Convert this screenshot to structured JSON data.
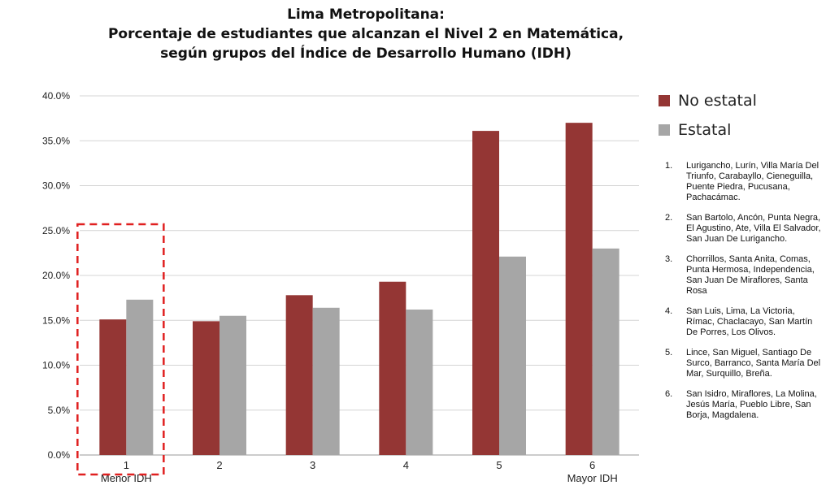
{
  "chart_data": {
    "type": "bar",
    "title_lines": [
      "Lima Metropolitana:",
      "Porcentaje de estudiantes que alcanzan el Nivel 2 en Matemática,",
      "según grupos del Índice de Desarrollo Humano  (IDH)"
    ],
    "categories": [
      "1",
      "2",
      "3",
      "4",
      "5",
      "6"
    ],
    "category_sublabels": [
      "Menor IDH",
      "",
      "",
      "",
      "",
      "Mayor IDH"
    ],
    "series": [
      {
        "name": "No estatal",
        "color": "#943634",
        "values": [
          15.1,
          14.9,
          17.8,
          19.3,
          36.1,
          37.0
        ]
      },
      {
        "name": "Estatal",
        "color": "#a6a6a6",
        "values": [
          17.3,
          15.5,
          16.4,
          16.2,
          22.1,
          23.0
        ]
      }
    ],
    "ylim": [
      0,
      40
    ],
    "yticks": [
      "0.0%",
      "5.0%",
      "10.0%",
      "15.0%",
      "20.0%",
      "25.0%",
      "30.0%",
      "35.0%",
      "40.0%"
    ],
    "grid": true,
    "legend_position": "right",
    "highlight_category": "1",
    "highlight_color": "#e02020",
    "notes": [
      {
        "num": "1.",
        "text": "Lurigancho, Lurín, Villa María Del Triunfo, Carabayllo, Cieneguilla, Puente Piedra, Pucusana, Pachacámac."
      },
      {
        "num": "2.",
        "text": "San Bartolo, Ancón, Punta Negra, El Agustino, Ate, Villa El Salvador, San Juan De Lurigancho."
      },
      {
        "num": "3.",
        "text": "Chorrillos, Santa Anita, Comas, Punta Hermosa, Independencia, San Juan De Miraflores, Santa Rosa"
      },
      {
        "num": "4.",
        "text": "San Luis, Lima, La Victoria, Rímac, Chaclacayo, San Martín De Porres, Los Olivos."
      },
      {
        "num": "5.",
        "text": "Lince, San Miguel, Santiago De Surco, Barranco, Santa María Del Mar, Surquillo, Breña."
      },
      {
        "num": "6.",
        "text": "San Isidro, Miraflores, La Molina, Jesús María, Pueblo Libre, San Borja, Magdalena."
      }
    ]
  }
}
